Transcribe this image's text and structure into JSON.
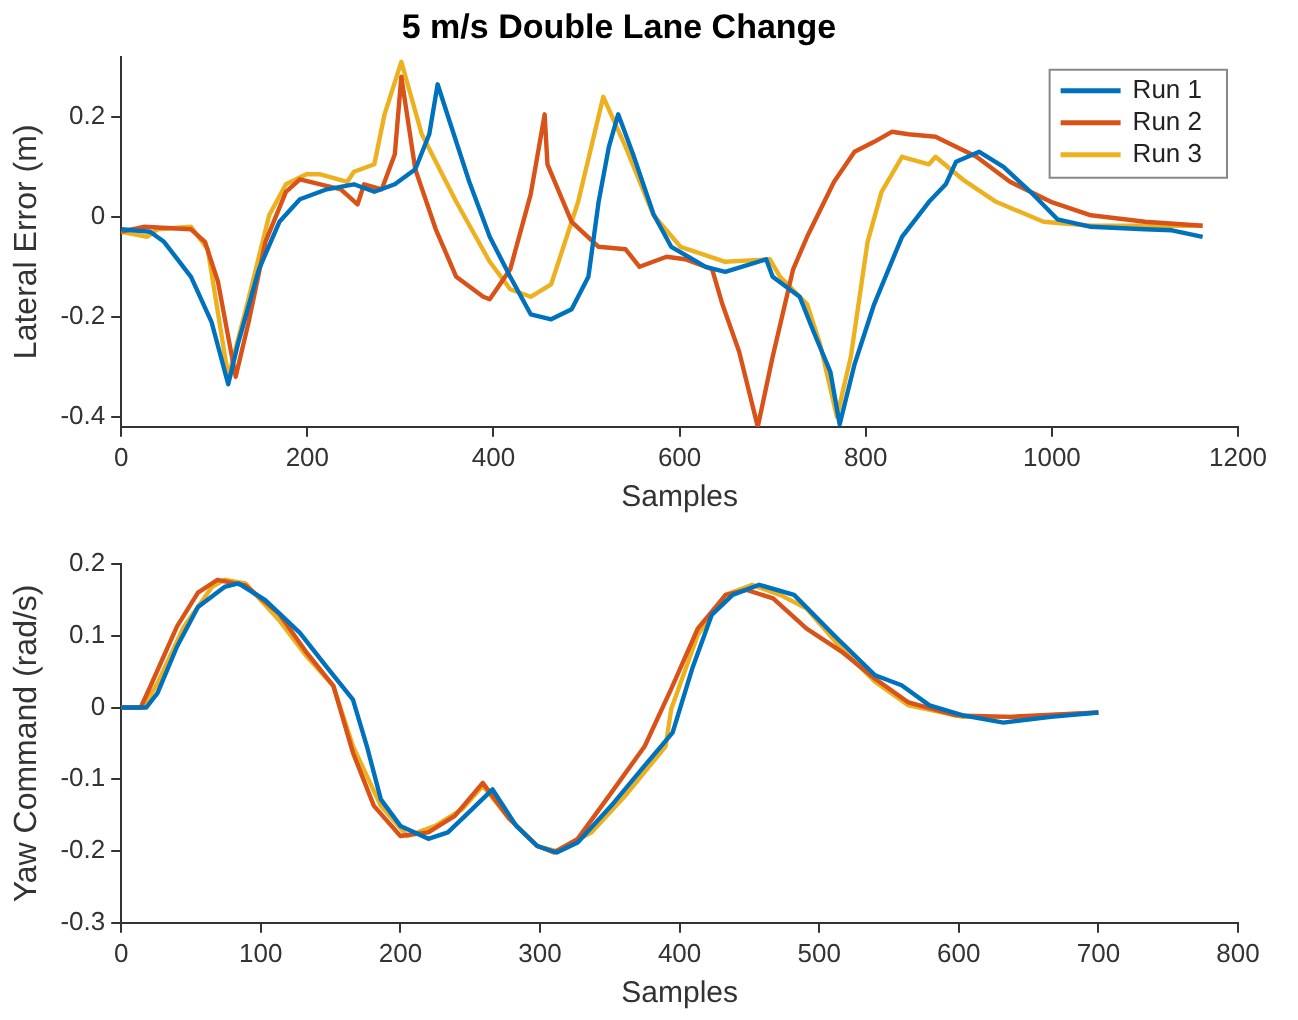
{
  "chart_data": [
    {
      "type": "line",
      "title": "5 m/s Double Lane Change",
      "xlabel": "Samples",
      "ylabel": "Lateral Error (m)",
      "xlim": [
        0,
        1200
      ],
      "xticks": [
        0,
        200,
        400,
        600,
        800,
        1000,
        1200
      ],
      "ylim": [
        -0.42,
        0.32
      ],
      "yticks": [
        -0.4,
        -0.2,
        0,
        0.2
      ],
      "legend": "top right",
      "series": [
        {
          "name": "Run 1",
          "color": "#0072bd",
          "x": [
            0,
            31,
            46,
            75,
            97,
            115,
            126,
            148,
            170,
            192,
            221,
            250,
            272,
            294,
            316,
            331,
            340,
            353,
            374,
            396,
            418,
            440,
            462,
            484,
            502,
            513,
            524,
            534,
            550,
            572,
            591,
            628,
            649,
            693,
            700,
            729,
            744,
            762,
            772,
            788,
            809,
            839,
            868,
            886,
            897,
            922,
            948,
            977,
            1006,
            1042,
            1100,
            1129,
            1162
          ],
          "values": [
            -0.025,
            -0.03,
            -0.05,
            -0.12,
            -0.21,
            -0.335,
            -0.25,
            -0.105,
            -0.01,
            0.035,
            0.055,
            0.065,
            0.05,
            0.065,
            0.095,
            0.165,
            0.265,
            0.19,
            0.07,
            -0.04,
            -0.12,
            -0.195,
            -0.205,
            -0.185,
            -0.12,
            0.03,
            0.14,
            0.205,
            0.125,
            0.005,
            -0.06,
            -0.1,
            -0.11,
            -0.085,
            -0.12,
            -0.16,
            -0.23,
            -0.31,
            -0.415,
            -0.295,
            -0.175,
            -0.04,
            0.03,
            0.065,
            0.11,
            0.13,
            0.1,
            0.05,
            -0.005,
            -0.02,
            -0.025,
            -0.027,
            -0.04
          ]
        },
        {
          "name": "Run 2",
          "color": "#d95319",
          "x": [
            0,
            24,
            75,
            90,
            104,
            123,
            137,
            155,
            177,
            192,
            214,
            236,
            254,
            261,
            280,
            294,
            301,
            316,
            338,
            360,
            389,
            396,
            418,
            440,
            455,
            458,
            484,
            513,
            542,
            557,
            586,
            606,
            635,
            646,
            664,
            684,
            700,
            722,
            737,
            766,
            788,
            809,
            828,
            846,
            875,
            919,
            955,
            999,
            1042,
            1100,
            1162
          ],
          "values": [
            -0.03,
            -0.02,
            -0.025,
            -0.05,
            -0.13,
            -0.32,
            -0.21,
            -0.05,
            0.05,
            0.075,
            0.065,
            0.055,
            0.025,
            0.065,
            0.055,
            0.125,
            0.28,
            0.095,
            -0.025,
            -0.12,
            -0.16,
            -0.165,
            -0.105,
            0.045,
            0.205,
            0.105,
            -0.01,
            -0.06,
            -0.065,
            -0.1,
            -0.08,
            -0.085,
            -0.105,
            -0.175,
            -0.27,
            -0.42,
            -0.28,
            -0.105,
            -0.04,
            0.07,
            0.13,
            0.15,
            0.17,
            0.165,
            0.16,
            0.12,
            0.07,
            0.03,
            0.003,
            -0.01,
            -0.018
          ]
        },
        {
          "name": "Run 3",
          "color": "#edb120",
          "x": [
            0,
            28,
            39,
            75,
            93,
            115,
            134,
            159,
            177,
            199,
            214,
            243,
            250,
            272,
            283,
            301,
            323,
            360,
            396,
            418,
            440,
            462,
            491,
            518,
            542,
            572,
            601,
            649,
            697,
            708,
            737,
            751,
            769,
            784,
            802,
            817,
            839,
            868,
            875,
            904,
            940,
            991,
            1042,
            1162
          ],
          "values": [
            -0.03,
            -0.04,
            -0.025,
            -0.02,
            -0.065,
            -0.32,
            -0.185,
            0.003,
            0.065,
            0.085,
            0.085,
            0.07,
            0.09,
            0.105,
            0.205,
            0.31,
            0.165,
            0.03,
            -0.09,
            -0.145,
            -0.16,
            -0.135,
            0.03,
            0.24,
            0.14,
            0.003,
            -0.06,
            -0.09,
            -0.085,
            -0.12,
            -0.175,
            -0.255,
            -0.4,
            -0.28,
            -0.05,
            0.05,
            0.12,
            0.105,
            0.12,
            0.075,
            0.03,
            -0.01,
            -0.018,
            -0.018
          ]
        }
      ]
    },
    {
      "type": "line",
      "xlabel": "Samples",
      "ylabel": "Yaw Command (rad/s)",
      "xlim": [
        0,
        800
      ],
      "xticks": [
        0,
        100,
        200,
        300,
        400,
        500,
        600,
        700,
        800
      ],
      "ylim": [
        -0.3,
        0.2
      ],
      "yticks": [
        -0.3,
        -0.2,
        -0.1,
        0,
        0.1,
        0.2
      ],
      "series": [
        {
          "color": "#0072bd",
          "x": [
            0,
            18,
            26,
            40,
            55,
            74,
            84,
            103,
            128,
            147,
            166,
            176,
            186,
            200,
            220,
            234,
            249,
            266,
            283,
            298,
            312,
            327,
            351,
            375,
            395,
            409,
            423,
            438,
            457,
            482,
            511,
            540,
            559,
            579,
            603,
            632,
            666,
            700
          ],
          "values": [
            0,
            0,
            0.02,
            0.085,
            0.14,
            0.168,
            0.173,
            0.15,
            0.104,
            0.057,
            0.011,
            -0.054,
            -0.128,
            -0.165,
            -0.183,
            -0.174,
            -0.146,
            -0.114,
            -0.165,
            -0.193,
            -0.202,
            -0.188,
            -0.137,
            -0.081,
            -0.035,
            0.054,
            0.129,
            0.157,
            0.171,
            0.157,
            0.1,
            0.045,
            0.031,
            0.003,
            -0.011,
            -0.021,
            -0.013,
            -0.007
          ]
        },
        {
          "color": "#d95319",
          "x": [
            0,
            14,
            21,
            40,
            55,
            69,
            89,
            113,
            133,
            152,
            166,
            181,
            200,
            220,
            239,
            259,
            278,
            298,
            310,
            327,
            351,
            375,
            394,
            413,
            433,
            448,
            467,
            491,
            516,
            540,
            564,
            598,
            637,
            700
          ],
          "values": [
            0,
            0,
            0.03,
            0.113,
            0.16,
            0.178,
            0.17,
            0.131,
            0.076,
            0.03,
            -0.063,
            -0.137,
            -0.179,
            -0.174,
            -0.151,
            -0.105,
            -0.155,
            -0.193,
            -0.202,
            -0.183,
            -0.119,
            -0.054,
            0.026,
            0.11,
            0.157,
            0.164,
            0.152,
            0.11,
            0.078,
            0.04,
            0.007,
            -0.011,
            -0.013,
            -0.007
          ]
        },
        {
          "color": "#edb120",
          "x": [
            0,
            16,
            26,
            45,
            65,
            74,
            89,
            113,
            133,
            152,
            166,
            186,
            205,
            225,
            244,
            259,
            278,
            298,
            312,
            337,
            361,
            390,
            394,
            413,
            433,
            452,
            472,
            491,
            516,
            540,
            564,
            603,
            646,
            700
          ],
          "values": [
            0,
            0,
            0.034,
            0.113,
            0.168,
            0.178,
            0.173,
            0.122,
            0.071,
            0.03,
            -0.054,
            -0.137,
            -0.179,
            -0.165,
            -0.142,
            -0.109,
            -0.155,
            -0.193,
            -0.2,
            -0.174,
            -0.123,
            -0.054,
            -0.002,
            0.101,
            0.157,
            0.171,
            0.157,
            0.138,
            0.082,
            0.036,
            0.003,
            -0.013,
            -0.013,
            -0.007
          ]
        }
      ]
    }
  ]
}
